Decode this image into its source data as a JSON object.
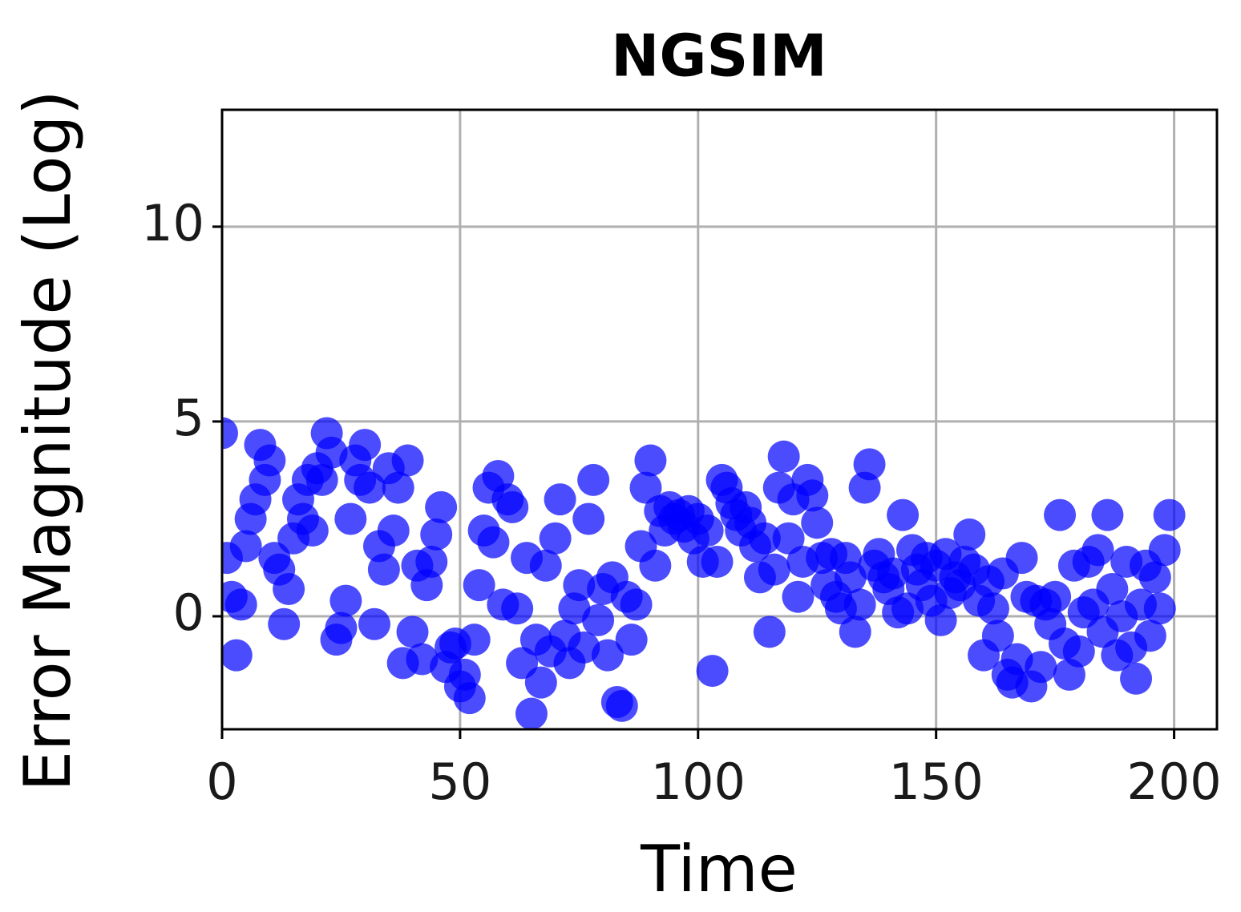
{
  "chart_data": {
    "type": "scatter",
    "title": "NGSIM",
    "xlabel": "Time",
    "ylabel": "Error Magnitude (Log)",
    "color": "#0000ff",
    "grid": true,
    "xlim": [
      0,
      209
    ],
    "ylim": [
      -2.9,
      13
    ],
    "xticks": [
      0,
      50,
      100,
      150,
      200
    ],
    "yticks": [
      0,
      5,
      10
    ],
    "x": [
      0,
      1,
      2,
      3,
      4,
      5,
      6,
      7,
      8,
      9,
      10,
      11,
      12,
      13,
      14,
      15,
      16,
      17,
      18,
      19,
      20,
      21,
      22,
      23,
      24,
      25,
      26,
      27,
      28,
      29,
      30,
      31,
      32,
      33,
      34,
      35,
      36,
      37,
      38,
      39,
      40,
      41,
      42,
      43,
      44,
      45,
      46,
      47,
      48,
      49,
      50,
      51,
      52,
      53,
      54,
      55,
      56,
      57,
      58,
      59,
      60,
      61,
      62,
      63,
      64,
      65,
      66,
      67,
      68,
      69,
      70,
      71,
      72,
      73,
      74,
      75,
      76,
      77,
      78,
      79,
      80,
      81,
      82,
      83,
      84,
      85,
      86,
      87,
      88,
      89,
      90,
      91,
      92,
      93,
      94,
      95,
      96,
      97,
      98,
      99,
      100,
      101,
      102,
      103,
      104,
      105,
      106,
      107,
      108,
      109,
      110,
      111,
      112,
      113,
      114,
      115,
      116,
      117,
      118,
      119,
      120,
      121,
      122,
      123,
      124,
      125,
      126,
      127,
      128,
      129,
      130,
      131,
      132,
      133,
      134,
      135,
      136,
      137,
      138,
      139,
      140,
      141,
      142,
      143,
      144,
      145,
      146,
      147,
      148,
      149,
      150,
      151,
      152,
      153,
      154,
      155,
      156,
      157,
      158,
      159,
      160,
      161,
      162,
      163,
      164,
      165,
      166,
      167,
      168,
      169,
      170,
      171,
      172,
      173,
      174,
      175,
      176,
      177,
      178,
      179,
      180,
      181,
      182,
      183,
      184,
      185,
      186,
      187,
      188,
      189,
      190,
      191,
      192,
      193,
      194,
      195,
      196,
      197,
      198,
      199
    ],
    "values": [
      4.7,
      1.5,
      0.5,
      -1,
      0.3,
      1.8,
      2.5,
      3,
      4.4,
      3.5,
      4,
      1.5,
      1.2,
      -0.2,
      0.7,
      2,
      3,
      2.5,
      3.5,
      2.2,
      3.8,
      3.5,
      4.7,
      4.2,
      -0.6,
      -0.3,
      0.4,
      2.5,
      4,
      3.5,
      4.4,
      3.3,
      -0.2,
      1.8,
      1.2,
      3.8,
      2.2,
      3.3,
      -1.2,
      4,
      -0.4,
      1.3,
      -1.1,
      0.8,
      1.4,
      2.1,
      2.8,
      -1.3,
      -0.8,
      -0.7,
      -1.8,
      -1.5,
      -2.1,
      -0.6,
      0.8,
      2.2,
      3.3,
      1.9,
      3.6,
      0.3,
      3,
      2.8,
      0.2,
      -1.2,
      1.5,
      -2.5,
      -0.6,
      -1.7,
      1.3,
      -0.9,
      2,
      3,
      -0.5,
      -1.2,
      0.2,
      0.8,
      -0.8,
      2.5,
      3.5,
      -0.1,
      0.7,
      -1,
      1,
      -2.2,
      -2.3,
      0.5,
      -0.6,
      0.3,
      1.8,
      3.3,
      4,
      1.3,
      2.7,
      2.2,
      2.8,
      2.5,
      2.6,
      2.3,
      2.7,
      2,
      2.5,
      1.4,
      2.2,
      -1.4,
      1.4,
      3.5,
      3.3,
      2.9,
      2.6,
      2.2,
      2.8,
      2.4,
      1.8,
      1,
      2,
      -0.4,
      1.2,
      3.3,
      4.1,
      2,
      3,
      0.5,
      1.4,
      3.5,
      3.1,
      2.4,
      1.5,
      0.8,
      1.6,
      0.5,
      0.2,
      1.5,
      1,
      -0.4,
      0.3,
      3.3,
      3.9,
      1.3,
      1.6,
      1,
      0.7,
      1.1,
      0.1,
      2.6,
      0.2,
      1.7,
      1.2,
      0.8,
      1.5,
      0.4,
      1.3,
      -0.1,
      1.6,
      0.6,
      1,
      0.8,
      1.4,
      2.1,
      1.2,
      0.4,
      -1,
      0.9,
      0.2,
      -0.5,
      1.1,
      -1.5,
      -1.7,
      -1.1,
      1.5,
      0.5,
      -1.8,
      0.4,
      -1.3,
      0.3,
      -0.2,
      0.5,
      2.6,
      -0.7,
      -1.5,
      1.3,
      -0.9,
      0.1,
      1.4,
      0.3,
      1.7,
      -0.4,
      2.6,
      0.7,
      -1,
      0,
      1.4,
      -0.8,
      -1.6,
      0.3,
      1.3,
      -0.5,
      1,
      0.2,
      1.7,
      2.6
    ]
  }
}
